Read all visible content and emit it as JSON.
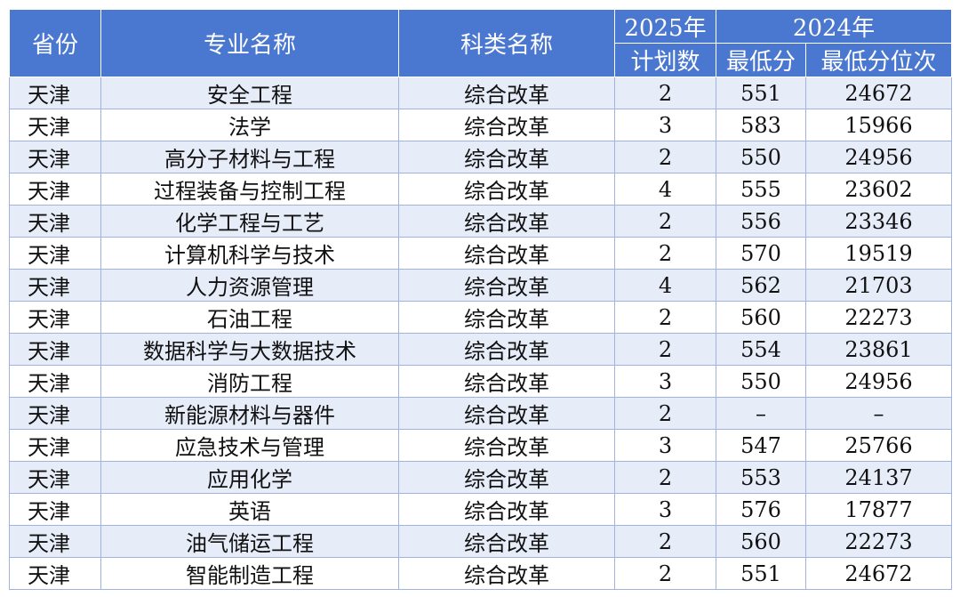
{
  "headers": {
    "province": "省份",
    "major": "专业名称",
    "category": "科类名称",
    "plan_year": "2025年",
    "plan_label": "计划数",
    "prev_year": "2024年",
    "min_score": "最低分",
    "min_rank": "最低分位次"
  },
  "rows": [
    {
      "province": "天津",
      "major": "安全工程",
      "category": "综合改革",
      "plan": "2",
      "score": "551",
      "rank": "24672"
    },
    {
      "province": "天津",
      "major": "法学",
      "category": "综合改革",
      "plan": "3",
      "score": "583",
      "rank": "15966"
    },
    {
      "province": "天津",
      "major": "高分子材料与工程",
      "category": "综合改革",
      "plan": "2",
      "score": "550",
      "rank": "24956"
    },
    {
      "province": "天津",
      "major": "过程装备与控制工程",
      "category": "综合改革",
      "plan": "4",
      "score": "555",
      "rank": "23602"
    },
    {
      "province": "天津",
      "major": "化学工程与工艺",
      "category": "综合改革",
      "plan": "2",
      "score": "556",
      "rank": "23346"
    },
    {
      "province": "天津",
      "major": "计算机科学与技术",
      "category": "综合改革",
      "plan": "2",
      "score": "570",
      "rank": "19519"
    },
    {
      "province": "天津",
      "major": "人力资源管理",
      "category": "综合改革",
      "plan": "4",
      "score": "562",
      "rank": "21703"
    },
    {
      "province": "天津",
      "major": "石油工程",
      "category": "综合改革",
      "plan": "2",
      "score": "560",
      "rank": "22273"
    },
    {
      "province": "天津",
      "major": "数据科学与大数据技术",
      "category": "综合改革",
      "plan": "2",
      "score": "554",
      "rank": "23861"
    },
    {
      "province": "天津",
      "major": "消防工程",
      "category": "综合改革",
      "plan": "3",
      "score": "550",
      "rank": "24956"
    },
    {
      "province": "天津",
      "major": "新能源材料与器件",
      "category": "综合改革",
      "plan": "2",
      "score": "–",
      "rank": "–"
    },
    {
      "province": "天津",
      "major": "应急技术与管理",
      "category": "综合改革",
      "plan": "3",
      "score": "547",
      "rank": "25766"
    },
    {
      "province": "天津",
      "major": "应用化学",
      "category": "综合改革",
      "plan": "2",
      "score": "553",
      "rank": "24137"
    },
    {
      "province": "天津",
      "major": "英语",
      "category": "综合改革",
      "plan": "3",
      "score": "576",
      "rank": "17877"
    },
    {
      "province": "天津",
      "major": "油气储运工程",
      "category": "综合改革",
      "plan": "2",
      "score": "560",
      "rank": "22273"
    },
    {
      "province": "天津",
      "major": "智能制造工程",
      "category": "综合改革",
      "plan": "2",
      "score": "551",
      "rank": "24672"
    }
  ]
}
